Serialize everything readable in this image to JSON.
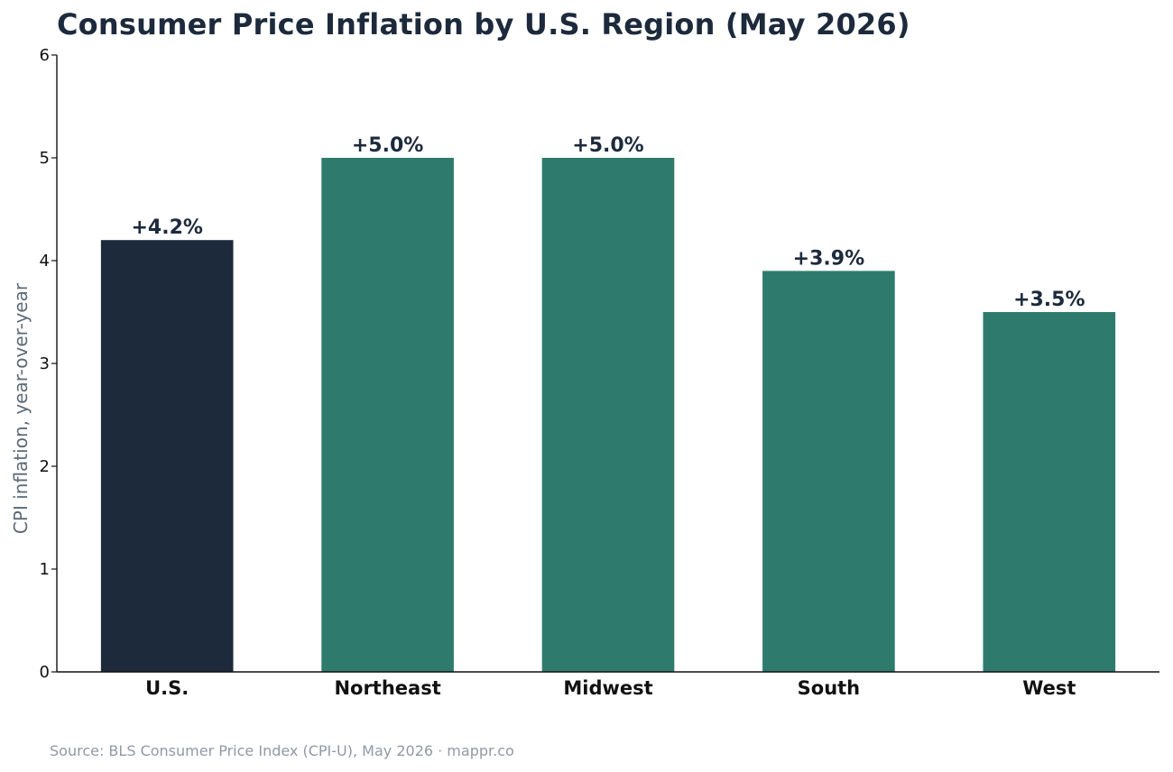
{
  "chart_data": {
    "type": "bar",
    "title": "Consumer Price Inflation by U.S. Region (May 2026)",
    "xlabel": "",
    "ylabel": "CPI inflation, year-over-year",
    "ylim": [
      0,
      6
    ],
    "yticks": [
      "0",
      "1",
      "2",
      "3",
      "4",
      "5",
      "6"
    ],
    "categories": [
      "U.S.",
      "Northeast",
      "Midwest",
      "South",
      "West"
    ],
    "values": [
      4.2,
      5.0,
      5.0,
      3.9,
      3.5
    ],
    "data_labels": [
      "+4.2%",
      "+5.0%",
      "+5.0%",
      "+3.9%",
      "+3.5%"
    ],
    "bar_colors": [
      "#1c2a3c",
      "#2e7b6e",
      "#2e7b6e",
      "#2e7b6e",
      "#2e7b6e"
    ],
    "grid": false,
    "legend": "none"
  },
  "source": "Source: BLS Consumer Price Index (CPI-U), May 2026 · mappr.co"
}
